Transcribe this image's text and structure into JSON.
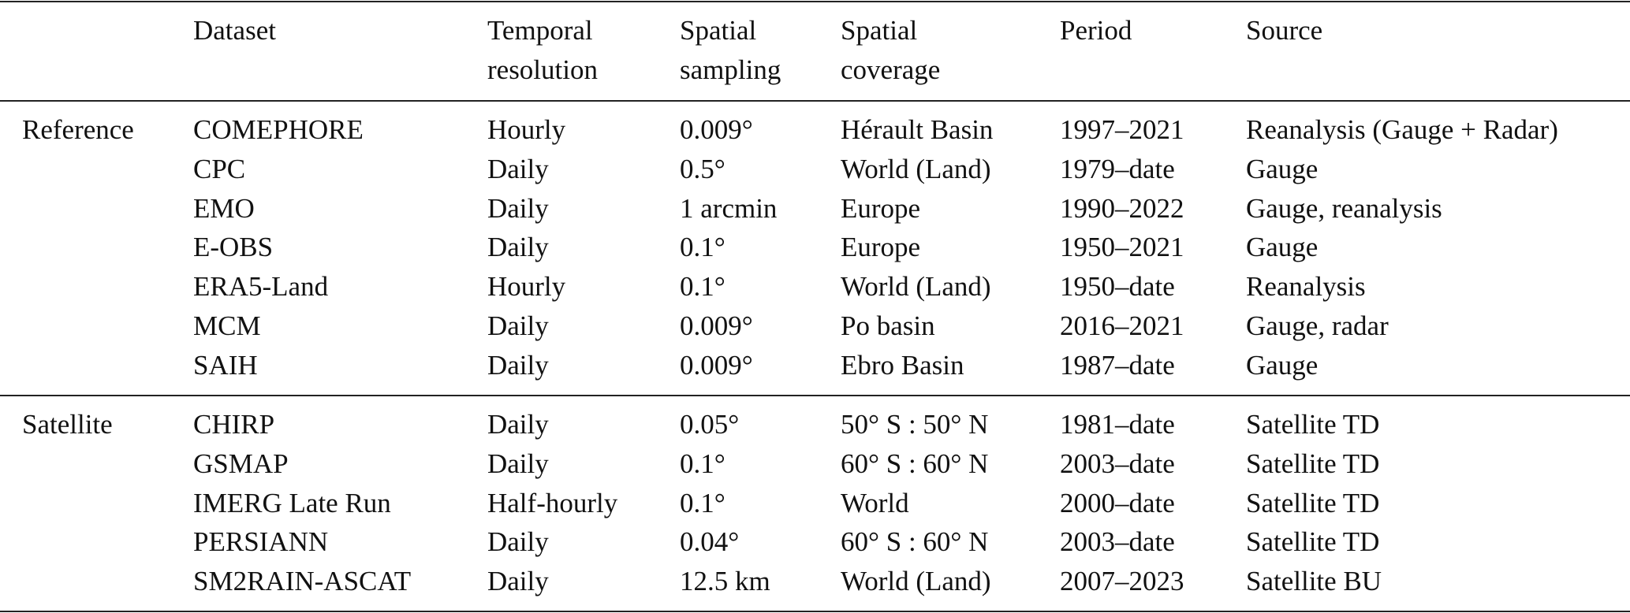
{
  "headers": {
    "dataset": [
      "Dataset"
    ],
    "temporal": [
      "Temporal",
      "resolution"
    ],
    "sampling": [
      "Spatial",
      "sampling"
    ],
    "coverage": [
      "Spatial",
      "coverage"
    ],
    "period": [
      "Period"
    ],
    "source": [
      "Source"
    ]
  },
  "groups": [
    {
      "label": "Reference",
      "rows": [
        {
          "dataset": "COMEPHORE",
          "temporal": "Hourly",
          "sampling": "0.009°",
          "coverage": "Hérault Basin",
          "period": "1997–2021",
          "source": "Reanalysis (Gauge + Radar)"
        },
        {
          "dataset": "CPC",
          "temporal": "Daily",
          "sampling": "0.5°",
          "coverage": "World (Land)",
          "period": "1979–date",
          "source": "Gauge"
        },
        {
          "dataset": "EMO",
          "temporal": "Daily",
          "sampling": "1 arcmin",
          "coverage": "Europe",
          "period": "1990–2022",
          "source": "Gauge, reanalysis"
        },
        {
          "dataset": "E-OBS",
          "temporal": "Daily",
          "sampling": "0.1°",
          "coverage": "Europe",
          "period": "1950–2021",
          "source": "Gauge"
        },
        {
          "dataset": "ERA5-Land",
          "temporal": "Hourly",
          "sampling": "0.1°",
          "coverage": "World (Land)",
          "period": "1950–date",
          "source": "Reanalysis"
        },
        {
          "dataset": "MCM",
          "temporal": "Daily",
          "sampling": "0.009°",
          "coverage": "Po basin",
          "period": "2016–2021",
          "source": "Gauge, radar"
        },
        {
          "dataset": "SAIH",
          "temporal": "Daily",
          "sampling": "0.009°",
          "coverage": "Ebro Basin",
          "period": "1987–date",
          "source": "Gauge"
        }
      ]
    },
    {
      "label": "Satellite",
      "rows": [
        {
          "dataset": "CHIRP",
          "temporal": "Daily",
          "sampling": "0.05°",
          "coverage": "50° S : 50° N",
          "period": "1981–date",
          "source": "Satellite TD"
        },
        {
          "dataset": "GSMAP",
          "temporal": "Daily",
          "sampling": "0.1°",
          "coverage": "60° S : 60° N",
          "period": "2003–date",
          "source": "Satellite TD"
        },
        {
          "dataset": "IMERG Late Run",
          "temporal": "Half-hourly",
          "sampling": "0.1°",
          "coverage": "World",
          "period": "2000–date",
          "source": "Satellite TD"
        },
        {
          "dataset": "PERSIANN",
          "temporal": "Daily",
          "sampling": "0.04°",
          "coverage": "60° S : 60° N",
          "period": "2003–date",
          "source": "Satellite TD"
        },
        {
          "dataset": "SM2RAIN-ASCAT",
          "temporal": "Daily",
          "sampling": "12.5 km",
          "coverage": "World (Land)",
          "period": "2007–2023",
          "source": "Satellite BU"
        }
      ]
    }
  ]
}
